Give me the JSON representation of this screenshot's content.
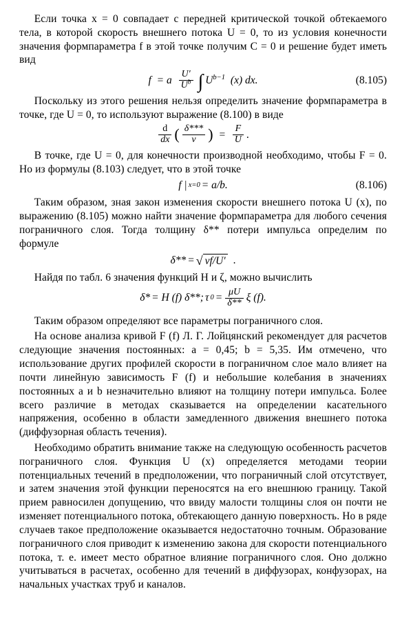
{
  "p1": "Если точка x = 0 совпадает с передней критической точкой обтекаемого тела, в которой скорость внешнего потока U = 0, то из условия конечности значения формпараметра f в этой точке получим C = 0 и решение будет иметь вид",
  "eq1_num": "(8.105)",
  "p2": "Поскольку из этого решения нельзя определить значение формпараметра в точке, где U = 0, то используют выражение (8.100) в виде",
  "p3": "В точке, где U = 0, для конечности производной необходимо, чтобы F = 0. Но из формулы (8.103) следует, что в этой точке",
  "eq3_num": "(8.106)",
  "p4": "Таким образом, зная закон изменения скорости внешнего потока U (x), по выражению (8.105) можно найти значение формпараметра для любого сечения пограничного слоя. Тогда толщину δ** потери импульса определим по формуле",
  "p5": "Найдя по табл. 6 значения функций H и ζ, можно вычислить",
  "p6": "Таким образом определяют все параметры пограничного слоя.",
  "p7": "На основе анализа кривой F (f) Л. Г. Лойцянский рекомендует для расчетов следующие значения постоянных: a = 0,45; b = 5,35. Им отмечено, что использование других профилей скорости в пограничном слое мало влияет на почти линейную зависимость F (f) и небольшие колебания в значениях постоянных a и b незначительно влияют на толщину потери импульса. Более всего различие в методах сказывается на определении касательного напряжения, особенно в области замедленного движения внешнего потока (диффузорная область течения).",
  "p8": "Необходимо обратить внимание также на следующую особенность расчетов пограничного слоя. Функция U (x) определяется методами теории потенциальных течений в предположении, что пограничный слой отсутствует, и затем значения этой функции переносятся на его внешнюю границу. Такой прием равносилен допущению, что ввиду малости толщины слоя он почти не изменяет потенциального потока, обтекающего данную поверхность. Но в ряде случаев такое предположение оказывается недостаточно точным. Образование пограничного слоя приводит к изменению закона для скорости потенциального потока, т. е. имеет место обратное влияние пограничного слоя. Оно должно учитываться в расчетах, особенно для течений в диффузорах, конфузорах, на начальных участках труб и каналов.",
  "eqA": {
    "f": "f",
    "eq": "= a",
    "Uprime": "U′",
    "Ub": "U",
    "bexp": "b",
    "int": "∫",
    "Ubm1": "U",
    "bm1": "b−1",
    "x": "(x) dx."
  },
  "eqB": {
    "ddx": "d",
    "dx": "dx",
    "open": "(",
    "delta": "δ***",
    "nu": "ν",
    "close": ")",
    "eq": "=",
    "F": "F",
    "U": "U",
    "dot": "."
  },
  "eqC": {
    "f": "f |",
    "sub": "x=0",
    "eq": " = a/b."
  },
  "eqD": {
    "d": "δ**",
    "eq": " = ",
    "root": "νf/U′",
    "dot": "."
  },
  "eqE": {
    "d1": "δ*",
    "eq1": " = H (f) δ**;  ",
    "tau": "τ",
    "sub0": "0",
    "eq2": " = ",
    "muU": "μU",
    "dss": "δ**",
    "xi": " ξ (f)."
  }
}
